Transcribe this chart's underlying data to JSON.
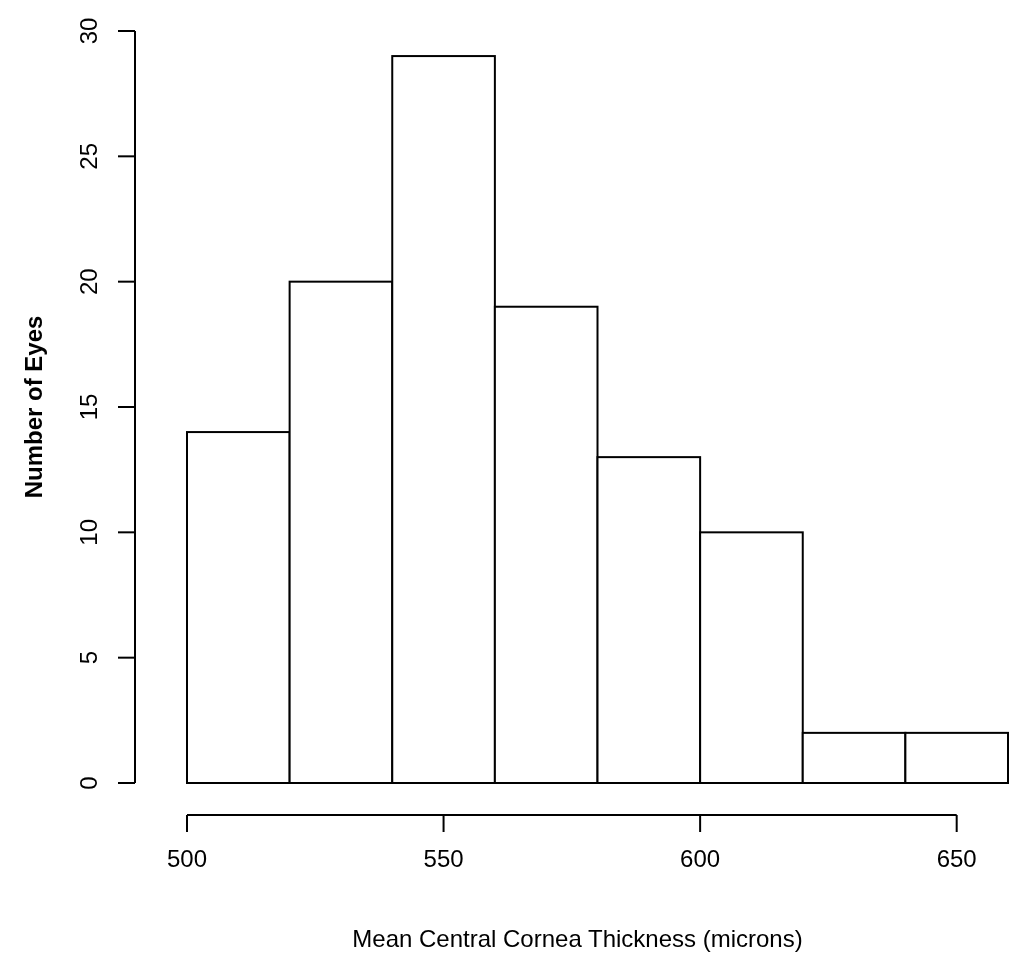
{
  "chart_data": {
    "type": "histogram",
    "xlabel": "Mean Central Cornea Thickness (microns)",
    "ylabel": "Number of Eyes",
    "bins": [
      500,
      520,
      540,
      560,
      580,
      600,
      620,
      640,
      660
    ],
    "values": [
      14,
      20,
      29,
      19,
      13,
      10,
      2,
      2
    ],
    "color": "#ffffff",
    "xlim": [
      500,
      660
    ],
    "xticks": [
      500,
      550,
      600,
      650
    ],
    "ylim": [
      0,
      30
    ],
    "yticks": [
      0,
      5,
      10,
      15,
      20,
      25,
      30
    ]
  }
}
